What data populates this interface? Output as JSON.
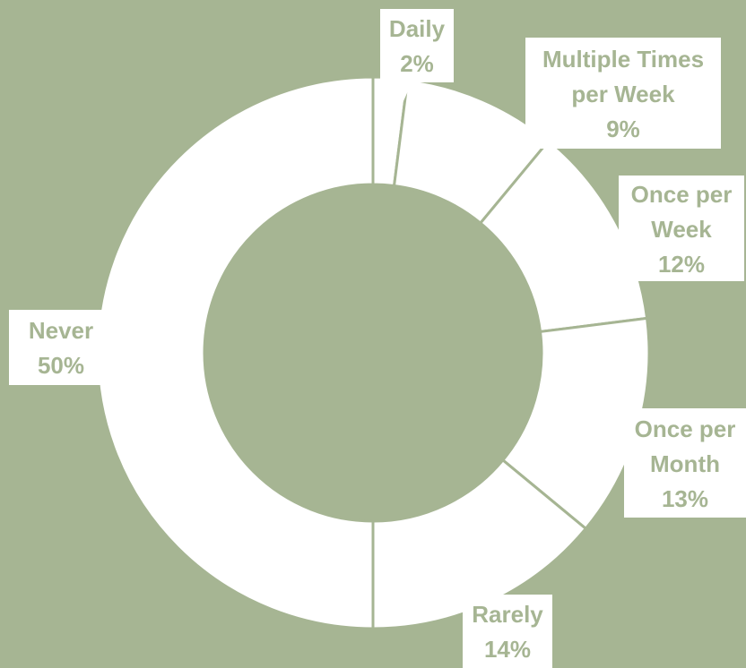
{
  "chart_data": {
    "type": "donut",
    "categories": [
      "Daily",
      "Multiple Times per Week",
      "Once per Week",
      "Once per Month",
      "Rarely",
      "Never"
    ],
    "values": [
      2,
      9,
      12,
      13,
      14,
      50
    ],
    "value_labels": [
      "2%",
      "9%",
      "12%",
      "13%",
      "14%",
      "50%"
    ],
    "color": "#ffffff",
    "background": "#a6b593"
  }
}
